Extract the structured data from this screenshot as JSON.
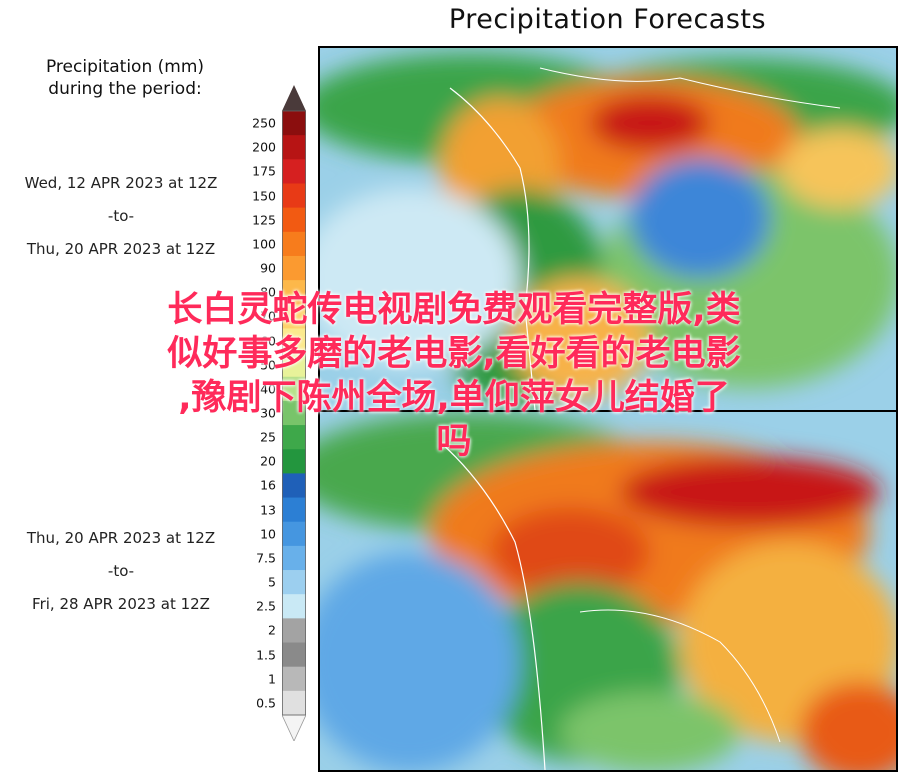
{
  "header": {
    "title": "Precipitation Forecasts"
  },
  "legend": {
    "title_line1": "Precipitation (mm)",
    "title_line2": "during the period:",
    "ticks": [
      "250",
      "200",
      "175",
      "150",
      "125",
      "100",
      "90",
      "80",
      "70",
      "60",
      "50",
      "40",
      "30",
      "25",
      "20",
      "16",
      "13",
      "10",
      "7.5",
      "5",
      "2.5",
      "2",
      "1.5",
      "1",
      "0.5"
    ],
    "colors": [
      "#8b0e0e",
      "#b71414",
      "#d62020",
      "#e83a16",
      "#f25a12",
      "#f77c1c",
      "#fb9a30",
      "#fdb84a",
      "#fdd26a",
      "#fbe98c",
      "#e8f29a",
      "#b7e08a",
      "#78c46a",
      "#3ea84a",
      "#23963e",
      "#1f60b8",
      "#2c7fd4",
      "#4596e0",
      "#68b0ea",
      "#9ccfef",
      "#c9e9f5",
      "#a3a3a3",
      "#8a8a8a",
      "#b8b8b8",
      "#e0e0e0"
    ]
  },
  "periods": [
    {
      "start": "Wed, 12 APR 2023 at 12Z",
      "sep": "-to-",
      "end": "Thu, 20 APR 2023 at 12Z"
    },
    {
      "start": "Thu, 20 APR 2023 at 12Z",
      "sep": "-to-",
      "end": "Fri, 28 APR 2023 at 12Z"
    }
  ],
  "overlay": {
    "line1": "长白灵蛇传电视剧免费观看完整版,类",
    "line2": "似好事多磨的老电影,看好看的老电影",
    "line3": ",豫剧下陈州全场,单仰萍女儿结婚了",
    "line4": "吗"
  }
}
